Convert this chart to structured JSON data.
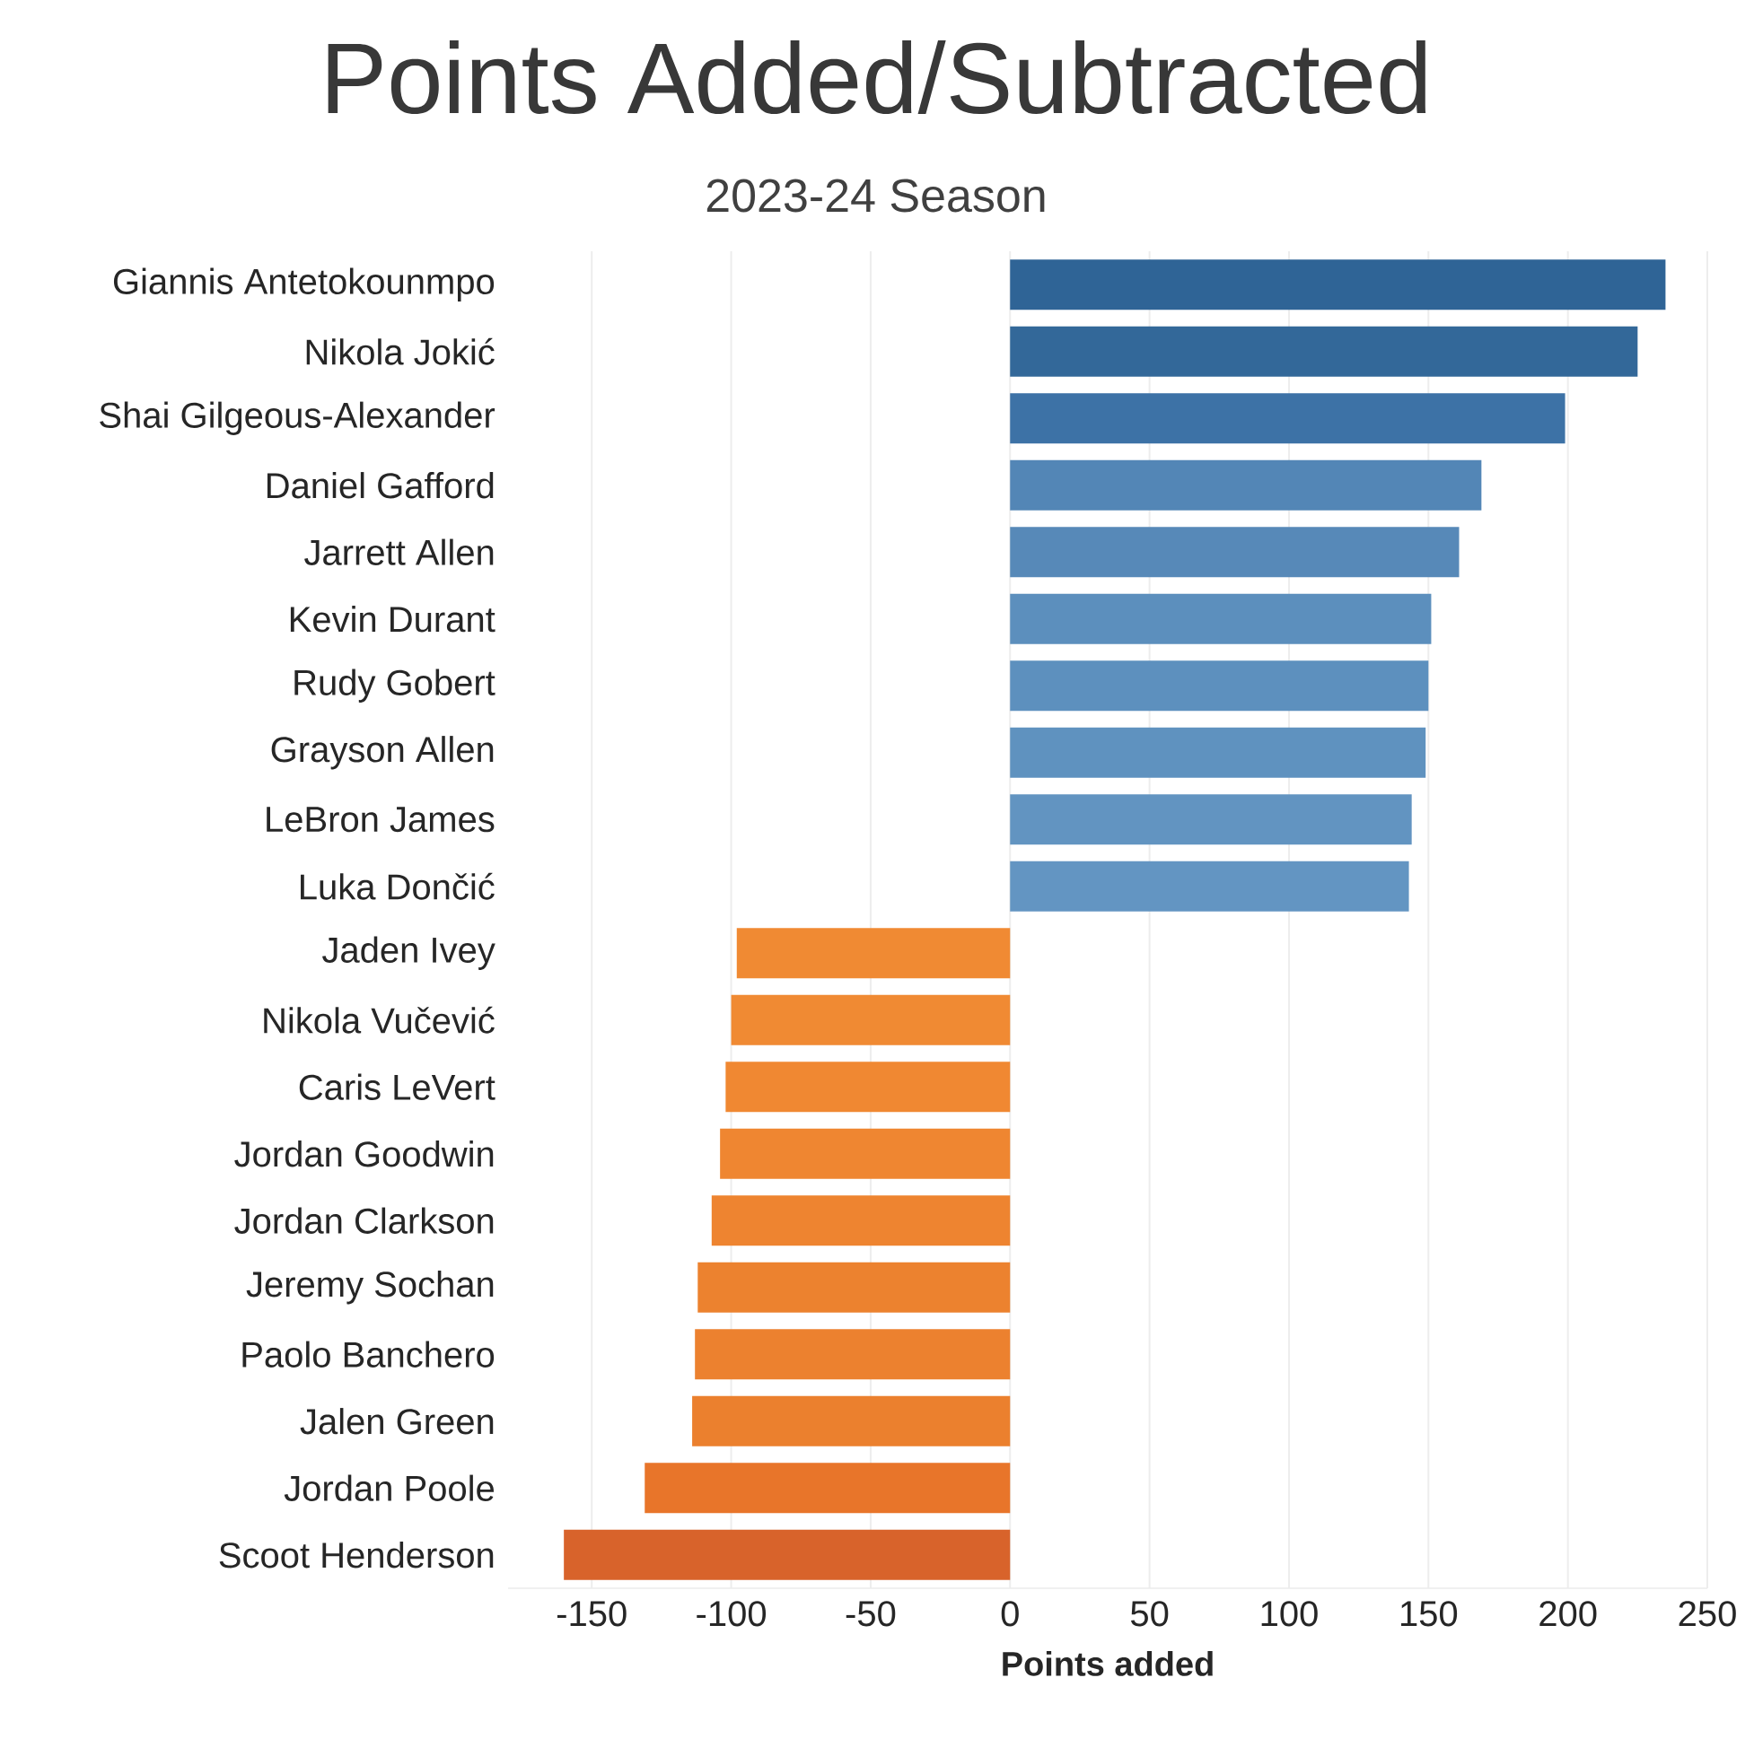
{
  "chart_data": {
    "type": "bar",
    "orientation": "horizontal",
    "title": "Points Added/Subtracted",
    "subtitle": "2023-24 Season",
    "xlabel": "Points added",
    "categories": [
      "Giannis Antetokounmpo",
      "Nikola Jokić",
      "Shai Gilgeous-Alexander",
      "Daniel Gafford",
      "Jarrett Allen",
      "Kevin Durant",
      "Rudy Gobert",
      "Grayson Allen",
      "LeBron James",
      "Luka Dončić",
      "Jaden Ivey",
      "Nikola Vučević",
      "Caris LeVert",
      "Jordan Goodwin",
      "Jordan Clarkson",
      "Jeremy Sochan",
      "Paolo Banchero",
      "Jalen Green",
      "Jordan Poole",
      "Scoot Henderson"
    ],
    "values": [
      235,
      225,
      199,
      169,
      161,
      151,
      150,
      149,
      144,
      143,
      -98,
      -100,
      -102,
      -104,
      -107,
      -112,
      -113,
      -114,
      -131,
      -160
    ],
    "colors": [
      "#2f6496",
      "#336899",
      "#3d72a6",
      "#5386b6",
      "#5789b8",
      "#5c8fbd",
      "#5d90be",
      "#5f92bf",
      "#6294c1",
      "#6395c2",
      "#f08a33",
      "#f08a33",
      "#f08832",
      "#ef8631",
      "#ee8430",
      "#ec822f",
      "#ec812f",
      "#eb802e",
      "#e8752a",
      "#d8632b"
    ],
    "xlim": [
      -180,
      250
    ],
    "xticks": [
      -150,
      -100,
      -50,
      0,
      50,
      100,
      150,
      200,
      250
    ],
    "grid": "x"
  }
}
